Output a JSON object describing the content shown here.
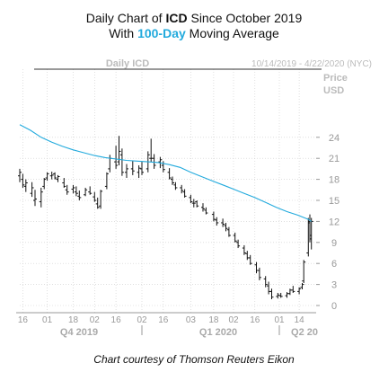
{
  "title_line1": {
    "pre": "Daily Chart of ",
    "ticker": "ICD",
    "post": " Since October 2019"
  },
  "title_line2": {
    "pre": "With ",
    "highlight": "100-Day",
    "post": " Moving Average"
  },
  "credit": "Chart courtesy of Thomson Reuters Eikon",
  "colors": {
    "price": "#111111",
    "ma": "#22aadd",
    "grid": "#cccccc",
    "axis": "#999999"
  },
  "chart_data": {
    "type": "line",
    "panel_label": "Daily ICD",
    "date_range": "10/14/2019 - 4/22/2020 (NYC)",
    "ylabel": "Price USD",
    "ylabel_lines": [
      "Price",
      "USD"
    ],
    "ylim": [
      -0.5,
      27.5
    ],
    "yticks": [
      0,
      3,
      6,
      9,
      12,
      15,
      18,
      21,
      24
    ],
    "x_tick_labels": [
      "16",
      "01",
      "18",
      "02",
      "16",
      "02",
      "16",
      "03",
      "18",
      "02",
      "16",
      "01",
      "14"
    ],
    "x_tick_dates": [
      "2019-10-16",
      "2019-11-01",
      "2019-11-18",
      "2019-12-02",
      "2019-12-16",
      "2020-01-02",
      "2020-01-16",
      "2020-02-03",
      "2020-02-18",
      "2020-03-02",
      "2020-03-16",
      "2020-04-01",
      "2020-04-14"
    ],
    "quarter_labels": [
      "Q4 2019",
      "Q1 2020",
      "Q2 20"
    ],
    "series": [
      {
        "name": "ICD",
        "style": "ohlc-bars",
        "points": [
          [
            "2019-10-14",
            18.5,
            19.5,
            17.6,
            19.0
          ],
          [
            "2019-10-16",
            18.0,
            18.8,
            16.8,
            17.2
          ],
          [
            "2019-10-18",
            17.0,
            18.0,
            16.2,
            17.5
          ],
          [
            "2019-10-22",
            16.0,
            17.6,
            15.5,
            16.8
          ],
          [
            "2019-10-24",
            15.0,
            16.5,
            14.2,
            15.2
          ],
          [
            "2019-10-28",
            14.8,
            16.8,
            14.0,
            16.2
          ],
          [
            "2019-10-30",
            17.0,
            18.2,
            16.6,
            18.0
          ],
          [
            "2019-11-01",
            18.2,
            19.0,
            17.8,
            18.8
          ],
          [
            "2019-11-04",
            18.5,
            19.1,
            18.0,
            18.6
          ],
          [
            "2019-11-06",
            18.8,
            19.0,
            18.0,
            18.2
          ],
          [
            "2019-11-08",
            18.0,
            18.6,
            17.6,
            18.4
          ],
          [
            "2019-11-12",
            17.5,
            18.2,
            16.8,
            17.0
          ],
          [
            "2019-11-14",
            16.5,
            17.2,
            15.8,
            16.2
          ],
          [
            "2019-11-18",
            16.6,
            17.2,
            16.0,
            16.8
          ],
          [
            "2019-11-20",
            16.2,
            17.0,
            15.6,
            16.0
          ],
          [
            "2019-11-22",
            15.6,
            16.4,
            15.0,
            15.4
          ],
          [
            "2019-11-26",
            15.8,
            16.8,
            15.6,
            16.5
          ],
          [
            "2019-11-29",
            16.2,
            17.0,
            15.8,
            16.0
          ],
          [
            "2019-12-02",
            15.5,
            16.2,
            14.8,
            15.0
          ],
          [
            "2019-12-04",
            14.5,
            15.4,
            13.8,
            14.0
          ],
          [
            "2019-12-06",
            14.2,
            16.5,
            13.8,
            16.3
          ],
          [
            "2019-12-10",
            17.0,
            19.0,
            16.6,
            18.8
          ],
          [
            "2019-12-12",
            19.5,
            21.5,
            19.0,
            21.0
          ],
          [
            "2019-12-16",
            20.5,
            22.8,
            19.5,
            20.0
          ],
          [
            "2019-12-18",
            20.5,
            24.2,
            20.0,
            22.0
          ],
          [
            "2019-12-20",
            21.5,
            22.4,
            18.5,
            19.0
          ],
          [
            "2019-12-23",
            19.0,
            20.2,
            18.2,
            19.5
          ],
          [
            "2019-12-27",
            19.5,
            20.6,
            18.6,
            19.2
          ],
          [
            "2019-12-31",
            19.0,
            20.0,
            18.2,
            19.6
          ],
          [
            "2020-01-02",
            19.5,
            20.5,
            18.6,
            19.0
          ],
          [
            "2020-01-06",
            19.5,
            22.0,
            19.0,
            21.5
          ],
          [
            "2020-01-08",
            21.0,
            23.8,
            20.5,
            21.0
          ],
          [
            "2020-01-10",
            21.0,
            21.6,
            19.5,
            20.0
          ],
          [
            "2020-01-14",
            20.5,
            21.2,
            19.6,
            20.8
          ],
          [
            "2020-01-16",
            20.0,
            20.6,
            19.0,
            19.4
          ],
          [
            "2020-01-20",
            19.0,
            19.6,
            18.0,
            18.2
          ],
          [
            "2020-01-22",
            18.0,
            18.4,
            17.2,
            17.5
          ],
          [
            "2020-01-24",
            17.2,
            17.6,
            16.5,
            16.8
          ],
          [
            "2020-01-28",
            16.8,
            17.2,
            16.0,
            16.4
          ],
          [
            "2020-01-30",
            16.2,
            16.6,
            15.4,
            15.6
          ],
          [
            "2020-02-03",
            15.4,
            15.8,
            14.6,
            14.8
          ],
          [
            "2020-02-05",
            14.6,
            15.2,
            14.0,
            14.6
          ],
          [
            "2020-02-07",
            14.8,
            15.0,
            14.0,
            14.2
          ],
          [
            "2020-02-11",
            14.0,
            14.6,
            13.4,
            13.8
          ],
          [
            "2020-02-13",
            13.6,
            14.0,
            13.0,
            13.2
          ],
          [
            "2020-02-18",
            13.0,
            13.4,
            12.0,
            12.3
          ],
          [
            "2020-02-20",
            12.2,
            12.6,
            11.4,
            11.8
          ],
          [
            "2020-02-24",
            11.8,
            12.4,
            11.2,
            11.6
          ],
          [
            "2020-02-26",
            11.4,
            11.8,
            10.6,
            11.0
          ],
          [
            "2020-02-28",
            10.8,
            11.2,
            9.8,
            10.0
          ],
          [
            "2020-03-03",
            10.0,
            10.4,
            9.0,
            9.2
          ],
          [
            "2020-03-05",
            9.0,
            9.4,
            8.2,
            8.5
          ],
          [
            "2020-03-09",
            8.2,
            8.6,
            7.2,
            7.5
          ],
          [
            "2020-03-11",
            7.4,
            7.8,
            6.5,
            6.8
          ],
          [
            "2020-03-13",
            6.8,
            7.2,
            5.8,
            6.0
          ],
          [
            "2020-03-17",
            5.8,
            6.2,
            4.6,
            5.0
          ],
          [
            "2020-03-19",
            5.0,
            5.4,
            3.6,
            4.0
          ],
          [
            "2020-03-23",
            3.8,
            4.2,
            2.6,
            3.0
          ],
          [
            "2020-03-25",
            2.8,
            3.4,
            1.6,
            2.0
          ],
          [
            "2020-03-27",
            2.0,
            2.4,
            0.9,
            1.2
          ],
          [
            "2020-03-31",
            1.3,
            1.8,
            1.0,
            1.5
          ],
          [
            "2020-04-02",
            1.4,
            1.8,
            1.1,
            1.3
          ],
          [
            "2020-04-06",
            1.4,
            1.9,
            1.1,
            1.7
          ],
          [
            "2020-04-08",
            1.7,
            2.4,
            1.5,
            2.2
          ],
          [
            "2020-04-10",
            2.2,
            2.8,
            1.8,
            2.0
          ],
          [
            "2020-04-14",
            2.0,
            2.6,
            1.6,
            2.4
          ],
          [
            "2020-04-16",
            2.6,
            3.2,
            2.3,
            3.0
          ],
          [
            "2020-04-17",
            3.5,
            6.5,
            3.2,
            6.2
          ],
          [
            "2020-04-20",
            7.5,
            12.5,
            7.0,
            11.8
          ],
          [
            "2020-04-21",
            12.0,
            13.0,
            9.0,
            10.0
          ],
          [
            "2020-04-22",
            9.5,
            12.5,
            8.0,
            12.0
          ]
        ]
      },
      {
        "name": "100-Day",
        "style": "line",
        "points": [
          [
            "2019-10-14",
            25.8
          ],
          [
            "2019-10-21",
            25.0
          ],
          [
            "2019-10-28",
            24.0
          ],
          [
            "2019-11-04",
            23.3
          ],
          [
            "2019-11-11",
            22.7
          ],
          [
            "2019-11-18",
            22.2
          ],
          [
            "2019-11-25",
            21.8
          ],
          [
            "2019-12-02",
            21.4
          ],
          [
            "2019-12-09",
            21.1
          ],
          [
            "2019-12-16",
            20.9
          ],
          [
            "2019-12-23",
            20.7
          ],
          [
            "2019-12-30",
            20.6
          ],
          [
            "2020-01-06",
            20.5
          ],
          [
            "2020-01-13",
            20.4
          ],
          [
            "2020-01-20",
            20.1
          ],
          [
            "2020-01-27",
            19.7
          ],
          [
            "2020-02-03",
            19.0
          ],
          [
            "2020-02-10",
            18.4
          ],
          [
            "2020-02-17",
            17.8
          ],
          [
            "2020-02-24",
            17.2
          ],
          [
            "2020-03-02",
            16.6
          ],
          [
            "2020-03-09",
            16.0
          ],
          [
            "2020-03-16",
            15.4
          ],
          [
            "2020-03-23",
            14.7
          ],
          [
            "2020-03-30",
            14.0
          ],
          [
            "2020-04-06",
            13.4
          ],
          [
            "2020-04-13",
            12.9
          ],
          [
            "2020-04-20",
            12.3
          ],
          [
            "2020-04-22",
            12.0
          ]
        ]
      }
    ]
  }
}
